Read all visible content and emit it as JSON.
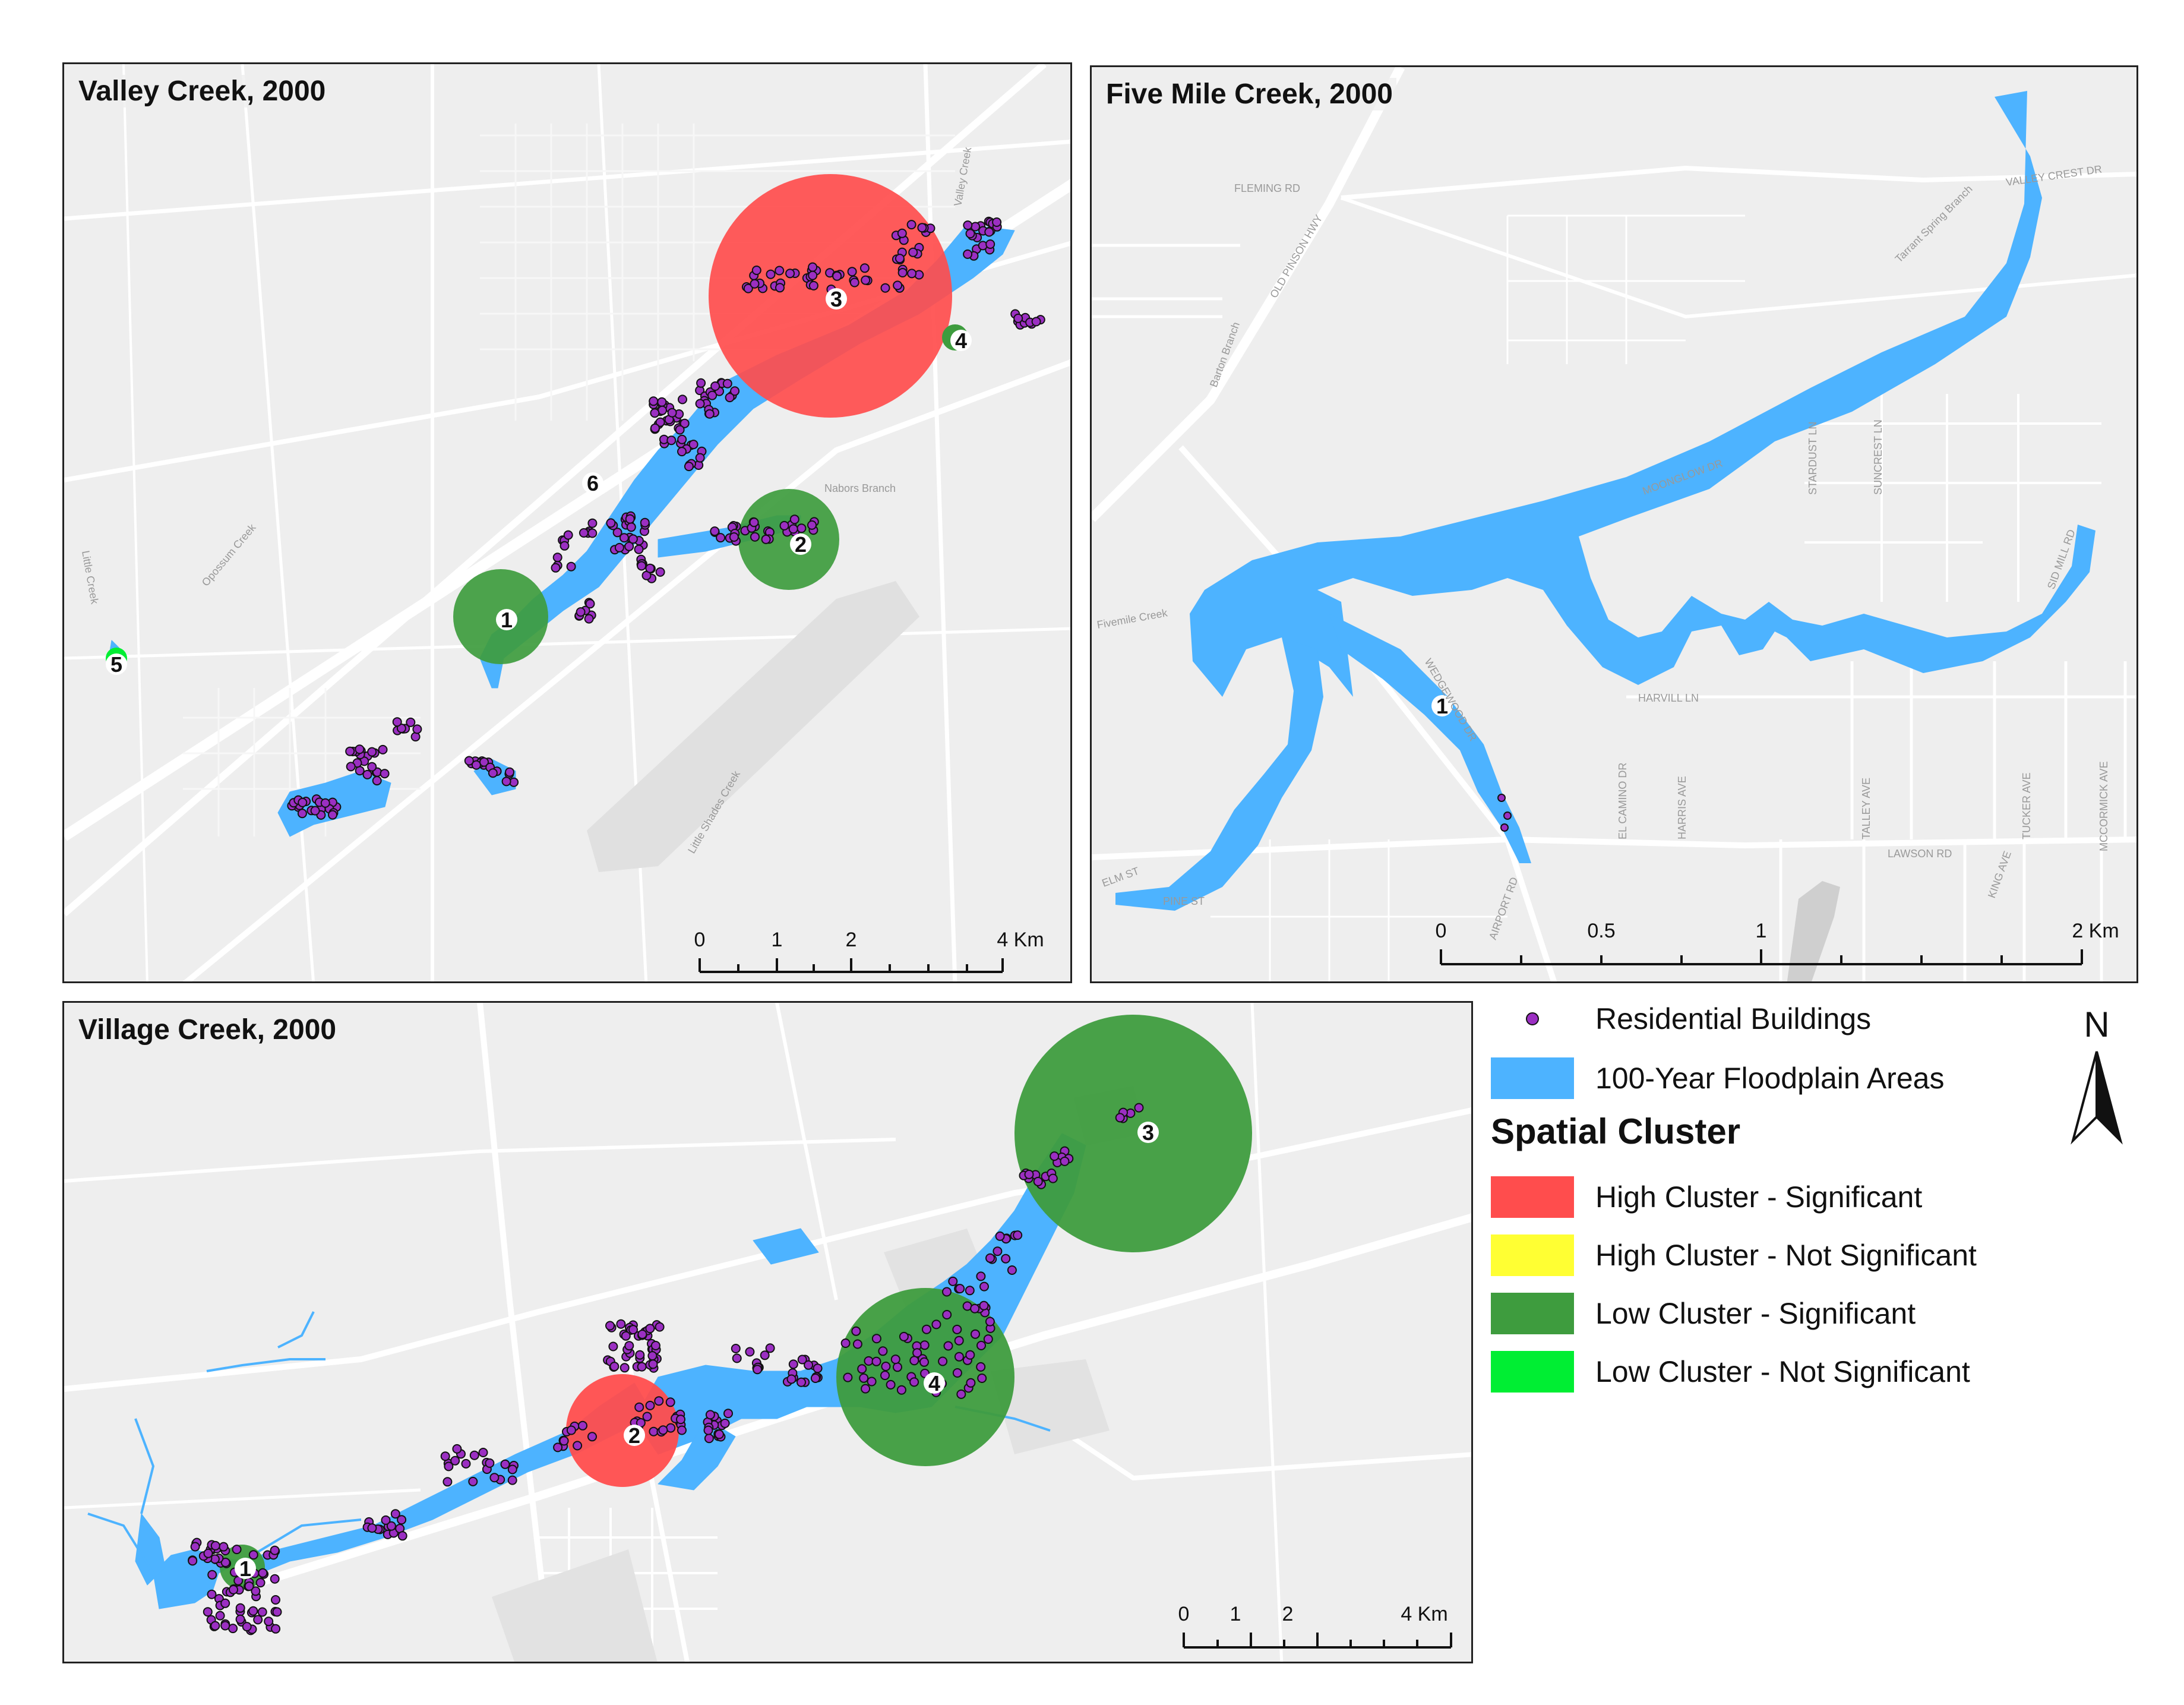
{
  "panels": {
    "valley": {
      "title": "Valley Creek, 2000",
      "scale": {
        "ticks": [
          "0",
          "1",
          "2",
          "4 Km"
        ]
      },
      "clusters": [
        {
          "id": "1",
          "type": "Low Cluster - Significant"
        },
        {
          "id": "2",
          "type": "Low Cluster - Significant"
        },
        {
          "id": "3",
          "type": "High Cluster - Significant"
        },
        {
          "id": "4",
          "type": "Low Cluster - Significant"
        },
        {
          "id": "5",
          "type": "Low Cluster - Not Significant"
        },
        {
          "id": "6",
          "type": "unlabeled"
        }
      ],
      "place_labels": [
        "Valley Creek",
        "Opossum Creek",
        "Little Creek",
        "Nabors Branch",
        "Little Shades Creek"
      ]
    },
    "fivemile": {
      "title": "Five Mile Creek, 2000",
      "scale": {
        "ticks": [
          "0",
          "0.5",
          "1",
          "2 Km"
        ]
      },
      "clusters": [
        {
          "id": "1",
          "type": "none"
        }
      ],
      "place_labels": [
        "FLEMING RD",
        "OLD PINSON HWY",
        "Barton Branch",
        "VALLEY CREST DR",
        "Tarrant Spring Branch",
        "MOONGLOW DR",
        "STARDUST LN",
        "SUNCREST LN",
        "WEDGEWOOD DR",
        "HARVILL LN",
        "EL CAMINO DR",
        "HARRIS AVE",
        "TALLEY AVE",
        "TUCKER AVE",
        "MCCORMICK AVE",
        "LAWSON RD",
        "AIRPORT RD",
        "ELM ST",
        "PINE ST",
        "Fivemile Creek",
        "SID MILL RD",
        "KING AVE"
      ]
    },
    "village": {
      "title": "Village Creek, 2000",
      "scale": {
        "ticks": [
          "0",
          "1",
          "2",
          "4 Km"
        ]
      },
      "clusters": [
        {
          "id": "1",
          "type": "Low Cluster - Significant"
        },
        {
          "id": "2",
          "type": "High Cluster - Significant"
        },
        {
          "id": "3",
          "type": "Low Cluster - Significant"
        },
        {
          "id": "4",
          "type": "Low Cluster - Significant"
        }
      ]
    }
  },
  "legend": {
    "buildings_label": "Residential Buildings",
    "floodplain_label": "100-Year Floodplain Areas",
    "cluster_title": "Spatial Cluster",
    "items": [
      {
        "label": "High Cluster - Significant",
        "color": "#ff4d4d"
      },
      {
        "label": "High Cluster - Not Significant",
        "color": "#ffff33"
      },
      {
        "label": "Low Cluster - Significant",
        "color": "#3e9c3e"
      },
      {
        "label": "Low Cluster - Not Significant",
        "color": "#00ee33"
      }
    ],
    "north_label": "N"
  },
  "colors": {
    "floodplain": "#4db3ff",
    "building": "#9b2fc2",
    "high_sig": "#ff4d4d",
    "low_sig": "#3e9c3e",
    "low_notsig": "#00ee33",
    "basemap": "#eeeeee",
    "road": "#ffffff"
  }
}
